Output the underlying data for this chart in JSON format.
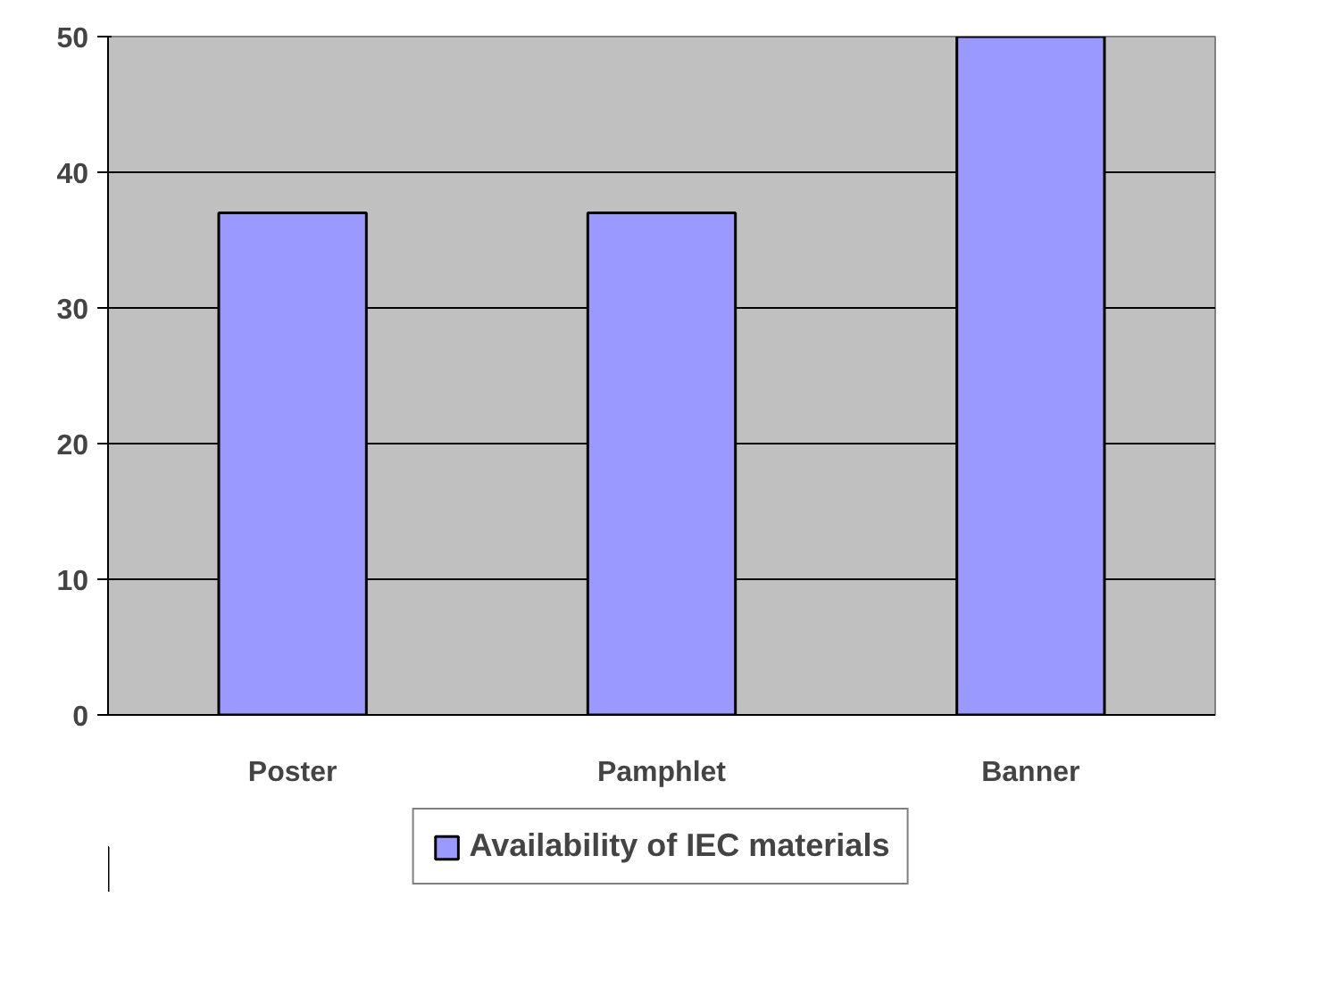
{
  "chart_data": {
    "type": "bar",
    "categories": [
      "Poster",
      "Pamphlet",
      "Banner"
    ],
    "series": [
      {
        "name": "Availability of IEC materials",
        "color": "#9999ff",
        "values": [
          37,
          37,
          50
        ]
      }
    ],
    "ylim": [
      0,
      50
    ],
    "yticks": [
      0,
      10,
      20,
      30,
      40,
      50
    ],
    "grid": "y",
    "legend": "bottom"
  }
}
